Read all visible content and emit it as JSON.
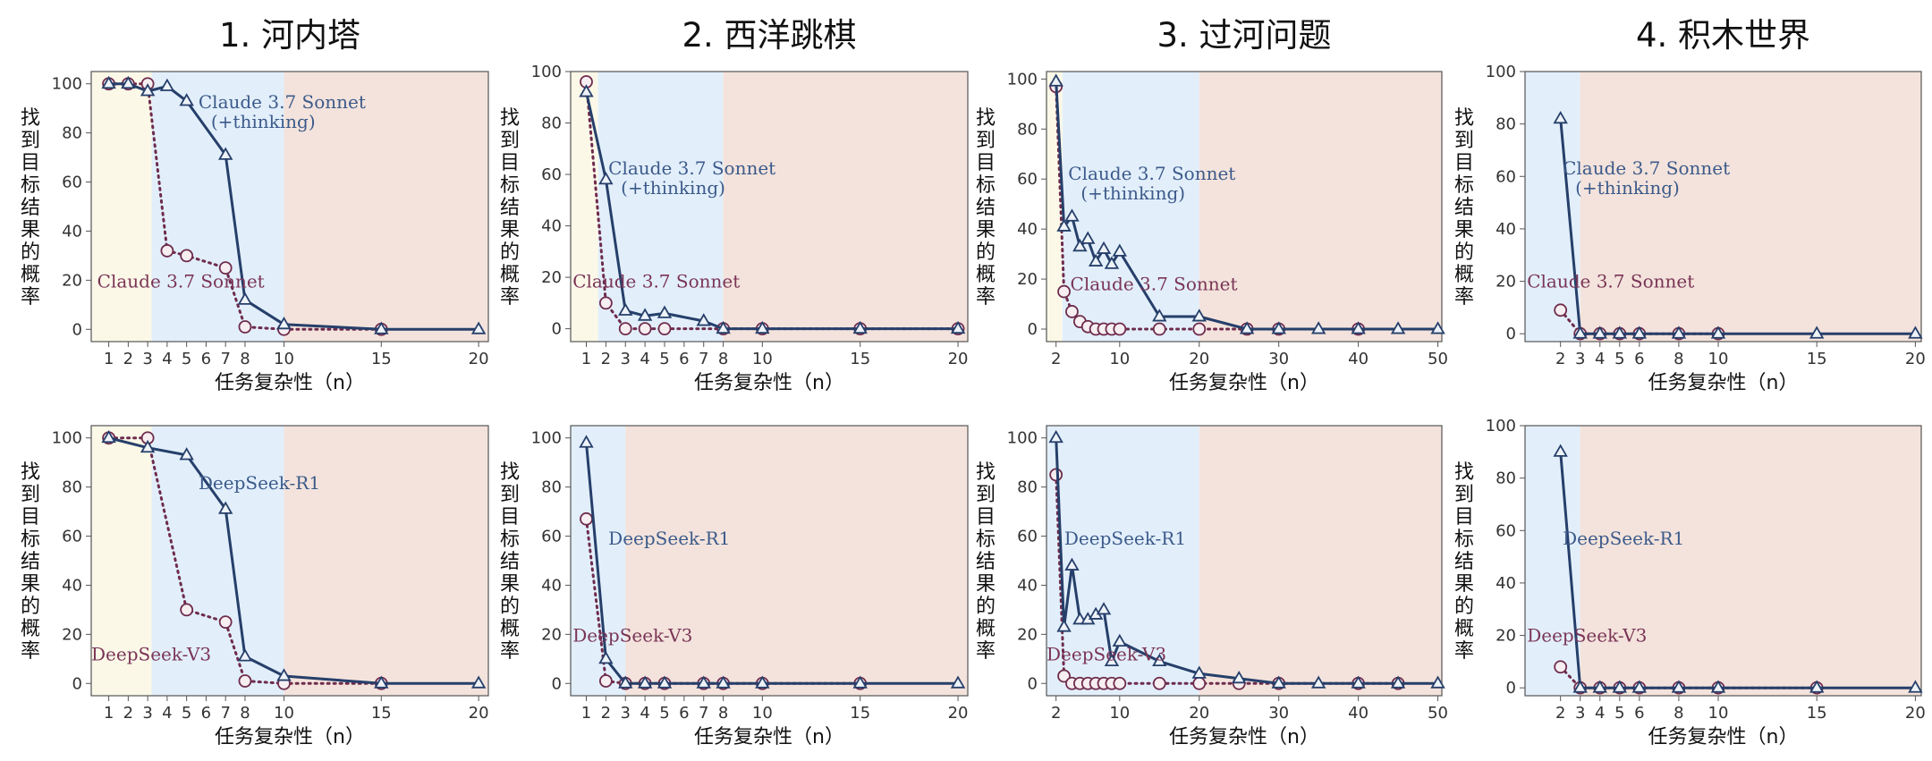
{
  "colors": {
    "bg_easy": "#fbf8e8",
    "bg_mid": "#e2effb",
    "bg_hard": "#f3e3dc",
    "thinking": "#263f6a",
    "nonthinking": "#6e2b4c",
    "thinking_text": "#3c5a8a",
    "nonthinking_text": "#7a3456"
  },
  "chart_data": [
    {
      "type": "line",
      "title": "1. 河内塔",
      "ylabel": "找到目标结果的概率",
      "xlabel": "任务复杂性（n）",
      "x_ticks": [
        1,
        2,
        3,
        4,
        5,
        6,
        7,
        8,
        10,
        15,
        20
      ],
      "xlim": [
        0.1,
        20.5
      ],
      "y_ticks": [
        0,
        20,
        40,
        60,
        80,
        100
      ],
      "ylim": [
        -5,
        105
      ],
      "regimes": [
        [
          0.1,
          3.2
        ],
        [
          3.2,
          10
        ],
        [
          10,
          20.5
        ]
      ],
      "series": [
        {
          "name": "Claude 3.7 Sonnet\n(+thinking)",
          "marker": "triangle",
          "x": [
            1,
            2,
            3,
            4,
            5,
            7,
            8,
            10,
            15,
            20
          ],
          "y": [
            100,
            100,
            97,
            99,
            93,
            71,
            12,
            2,
            0,
            0
          ]
        },
        {
          "name": "Claude 3.7 Sonnet",
          "marker": "circle",
          "x": [
            1,
            2,
            3,
            4,
            5,
            7,
            8,
            10,
            15
          ],
          "y": [
            100,
            100,
            100,
            32,
            30,
            25,
            1,
            0,
            0
          ]
        }
      ]
    },
    {
      "type": "line",
      "title": "2. 西洋跳棋",
      "ylabel": "找到目标结果的概率",
      "xlabel": "任务复杂性（n）",
      "x_ticks": [
        1,
        2,
        3,
        4,
        5,
        6,
        7,
        8,
        10,
        15,
        20
      ],
      "xlim": [
        0.2,
        20.5
      ],
      "y_ticks": [
        0,
        20,
        40,
        60,
        80,
        100
      ],
      "ylim": [
        -5,
        100
      ],
      "regimes": [
        [
          0.2,
          1.6
        ],
        [
          1.6,
          8
        ],
        [
          8,
          20.5
        ]
      ],
      "series": [
        {
          "name": "Claude 3.7 Sonnet\n(+thinking)",
          "marker": "triangle",
          "x": [
            1,
            2,
            3,
            4,
            5,
            7,
            8,
            10,
            15,
            20
          ],
          "y": [
            92,
            58,
            7,
            5,
            6,
            3,
            0,
            0,
            0,
            0
          ]
        },
        {
          "name": "Claude 3.7 Sonnet",
          "marker": "circle",
          "x": [
            1,
            2,
            3,
            4,
            5,
            8,
            10,
            15,
            20
          ],
          "y": [
            96,
            10,
            0,
            0,
            0,
            0,
            0,
            0,
            0
          ]
        }
      ]
    },
    {
      "type": "line",
      "title": "3. 过河问题",
      "ylabel": "找到目标结果的概率",
      "xlabel": "任务复杂性（n）",
      "x_ticks": [
        2,
        10,
        20,
        30,
        40,
        50
      ],
      "xlim": [
        0.8,
        50.5
      ],
      "y_ticks": [
        0,
        20,
        40,
        60,
        80,
        100
      ],
      "ylim": [
        -5,
        103
      ],
      "regimes": [
        [
          0.8,
          2.8
        ],
        [
          2.8,
          20
        ],
        [
          20,
          50.5
        ]
      ],
      "series": [
        {
          "name": "Claude 3.7 Sonnet\n(+thinking)",
          "marker": "triangle",
          "x": [
            2,
            3,
            4,
            5,
            6,
            7,
            8,
            9,
            10,
            15,
            20,
            26,
            30,
            35,
            40,
            45,
            50
          ],
          "y": [
            99,
            41,
            45,
            33,
            36,
            27,
            32,
            26,
            31,
            5,
            5,
            0,
            0,
            0,
            0,
            0,
            0
          ]
        },
        {
          "name": "Claude 3.7 Sonnet",
          "marker": "circle",
          "x": [
            2,
            3,
            4,
            5,
            6,
            7,
            8,
            9,
            10,
            15,
            20,
            26,
            30,
            40
          ],
          "y": [
            97,
            15,
            7,
            3,
            1,
            0,
            0,
            0,
            0,
            0,
            0,
            0,
            0,
            0
          ]
        }
      ]
    },
    {
      "type": "line",
      "title": "4. 积木世界",
      "ylabel": "找到目标结果的概率",
      "xlabel": "任务复杂性（n）",
      "x_ticks": [
        2,
        3,
        4,
        5,
        6,
        8,
        10,
        15,
        20
      ],
      "xlim": [
        0.2,
        20.3
      ],
      "y_ticks": [
        0,
        20,
        40,
        60,
        80,
        100
      ],
      "ylim": [
        -3,
        100
      ],
      "regimes": [
        [
          0.2,
          3
        ],
        [
          3,
          20.3
        ]
      ],
      "series": [
        {
          "name": "Claude 3.7 Sonnet\n(+thinking)",
          "marker": "triangle",
          "x": [
            2,
            3,
            4,
            5,
            6,
            8,
            10,
            15,
            20
          ],
          "y": [
            82,
            0,
            0,
            0,
            0,
            0,
            0,
            0,
            0
          ]
        },
        {
          "name": "Claude 3.7 Sonnet",
          "marker": "circle",
          "x": [
            2,
            3,
            4,
            5,
            6,
            8,
            10
          ],
          "y": [
            9,
            0,
            0,
            0,
            0,
            0,
            0
          ]
        }
      ]
    },
    {
      "type": "line",
      "title": "",
      "ylabel": "找到目标结果的概率",
      "xlabel": "任务复杂性（n）",
      "x_ticks": [
        1,
        2,
        3,
        4,
        5,
        6,
        7,
        8,
        10,
        15,
        20
      ],
      "xlim": [
        0.1,
        20.5
      ],
      "y_ticks": [
        0,
        20,
        40,
        60,
        80,
        100
      ],
      "ylim": [
        -5,
        105
      ],
      "regimes": [
        [
          0.1,
          3.2
        ],
        [
          3.2,
          10
        ],
        [
          10,
          20.5
        ]
      ],
      "series": [
        {
          "name": "DeepSeek-R1",
          "marker": "triangle",
          "x": [
            1,
            3,
            5,
            7,
            8,
            10,
            15,
            20
          ],
          "y": [
            100,
            96,
            93,
            71,
            11,
            3,
            0,
            0
          ]
        },
        {
          "name": "DeepSeek-V3",
          "marker": "circle",
          "x": [
            1,
            3,
            5,
            7,
            8,
            10,
            15
          ],
          "y": [
            100,
            100,
            30,
            25,
            1,
            0,
            0
          ]
        }
      ]
    },
    {
      "type": "line",
      "title": "",
      "ylabel": "找到目标结果的概率",
      "xlabel": "任务复杂性（n）",
      "x_ticks": [
        1,
        2,
        3,
        4,
        5,
        6,
        7,
        8,
        10,
        15,
        20
      ],
      "xlim": [
        0.2,
        20.5
      ],
      "y_ticks": [
        0,
        20,
        40,
        60,
        80,
        100
      ],
      "ylim": [
        -5,
        105
      ],
      "regimes": [
        [
          0.2,
          3
        ],
        [
          3,
          20.5
        ]
      ],
      "series": [
        {
          "name": "DeepSeek-R1",
          "marker": "triangle",
          "x": [
            1,
            2,
            3,
            4,
            5,
            7,
            8,
            10,
            15,
            20
          ],
          "y": [
            98,
            10,
            0,
            0,
            0,
            0,
            0,
            0,
            0,
            0
          ]
        },
        {
          "name": "DeepSeek-V3",
          "marker": "circle",
          "x": [
            1,
            2,
            3,
            4,
            5,
            7,
            8,
            10,
            15
          ],
          "y": [
            67,
            1,
            0,
            0,
            0,
            0,
            0,
            0,
            0
          ]
        }
      ]
    },
    {
      "type": "line",
      "title": "",
      "ylabel": "找到目标结果的概率",
      "xlabel": "任务复杂性（n）",
      "x_ticks": [
        2,
        10,
        20,
        30,
        40,
        50
      ],
      "xlim": [
        0.8,
        50.5
      ],
      "y_ticks": [
        0,
        20,
        40,
        60,
        80,
        100
      ],
      "ylim": [
        -5,
        105
      ],
      "regimes": [
        [
          0.8,
          20
        ],
        [
          20,
          50.5
        ]
      ],
      "series": [
        {
          "name": "DeepSeek-R1",
          "marker": "triangle",
          "x": [
            2,
            3,
            4,
            5,
            6,
            7,
            8,
            9,
            10,
            15,
            20,
            25,
            30,
            35,
            40,
            45,
            50
          ],
          "y": [
            100,
            23,
            48,
            26,
            26,
            28,
            30,
            9,
            17,
            9,
            4,
            2,
            0,
            0,
            0,
            0,
            0
          ]
        },
        {
          "name": "DeepSeek-V3",
          "marker": "circle",
          "x": [
            2,
            3,
            4,
            5,
            6,
            7,
            8,
            9,
            10,
            15,
            20,
            25,
            30,
            40,
            45
          ],
          "y": [
            85,
            3,
            0,
            0,
            0,
            0,
            0,
            0,
            0,
            0,
            0,
            0,
            0,
            0,
            0
          ]
        }
      ]
    },
    {
      "type": "line",
      "title": "",
      "ylabel": "找到目标结果的概率",
      "xlabel": "任务复杂性（n）",
      "x_ticks": [
        2,
        3,
        4,
        5,
        6,
        8,
        10,
        15,
        20
      ],
      "xlim": [
        0.2,
        20.3
      ],
      "y_ticks": [
        0,
        20,
        40,
        60,
        80,
        100
      ],
      "ylim": [
        -3,
        100
      ],
      "regimes": [
        [
          0.2,
          3
        ],
        [
          3,
          20.3
        ]
      ],
      "series": [
        {
          "name": "DeepSeek-R1",
          "marker": "triangle",
          "x": [
            2,
            3,
            4,
            5,
            6,
            8,
            10,
            15,
            20
          ],
          "y": [
            90,
            0,
            0,
            0,
            0,
            0,
            0,
            0,
            0
          ]
        },
        {
          "name": "DeepSeek-V3",
          "marker": "circle",
          "x": [
            2,
            3,
            4,
            5,
            6,
            8,
            10,
            15
          ],
          "y": [
            8,
            0,
            0,
            0,
            0,
            0,
            0,
            0
          ]
        }
      ]
    }
  ]
}
